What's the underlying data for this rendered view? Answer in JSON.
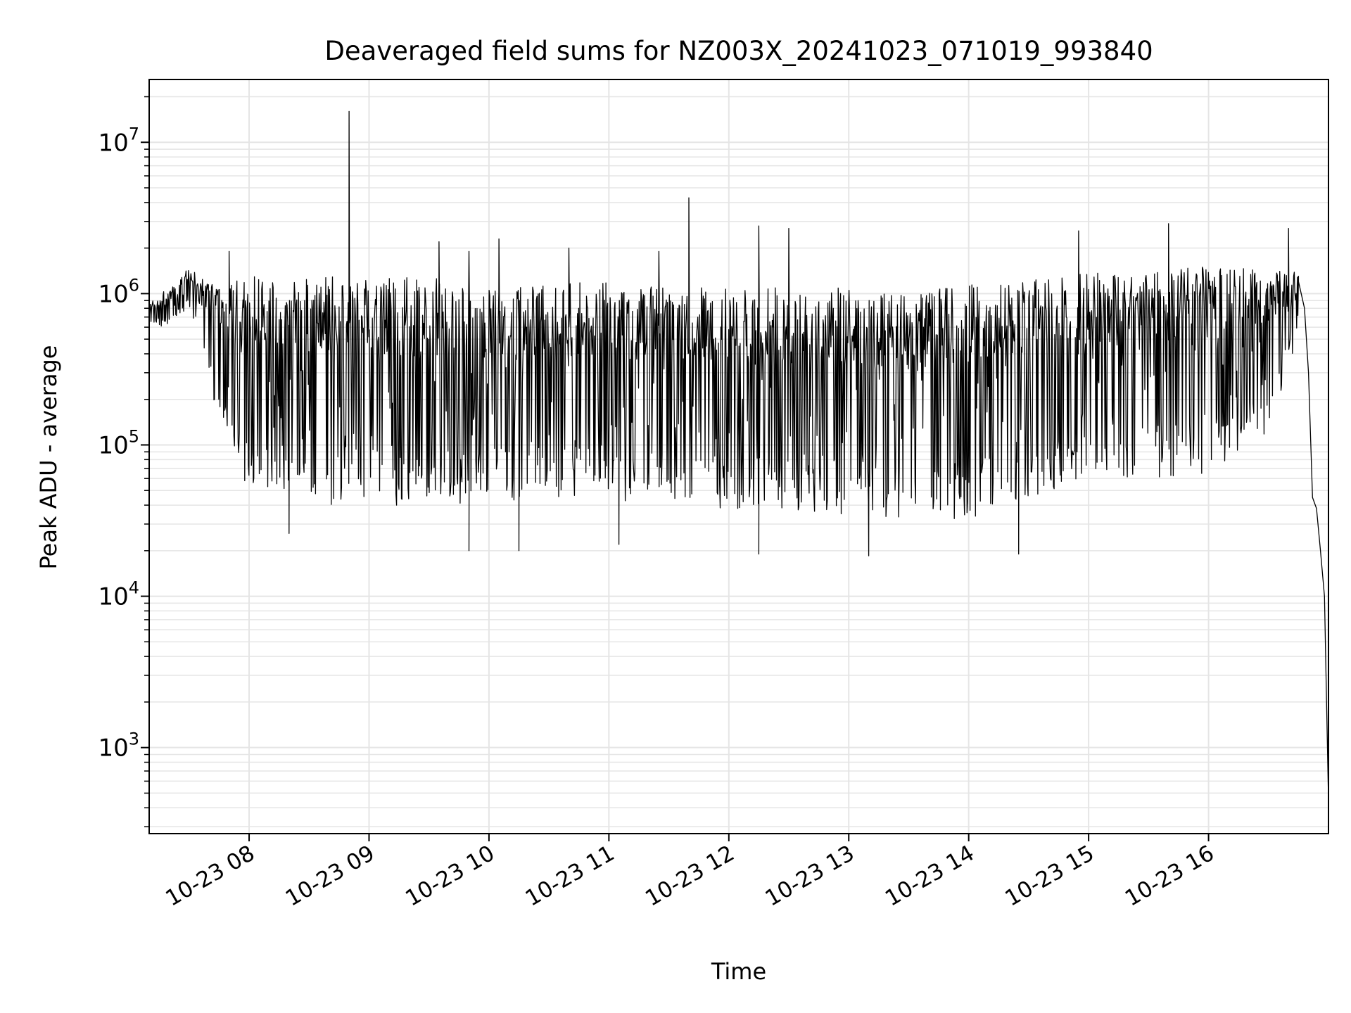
{
  "chart_data": {
    "type": "line",
    "title": "Deaveraged field sums for NZ003X_20241023_071019_993840",
    "xlabel": "Time",
    "ylabel": "Peak ADU - average",
    "yscale": "log",
    "ylim": [
      270,
      26000000
    ],
    "xlim": [
      "2024-10-23 07:10",
      "2024-10-23 17:00"
    ],
    "grid": true,
    "line_color": "#000000",
    "grid_color": "#e5e5e5",
    "x_tick_values": [
      "2024-10-23 08:00",
      "2024-10-23 09:00",
      "2024-10-23 10:00",
      "2024-10-23 11:00",
      "2024-10-23 12:00",
      "2024-10-23 13:00",
      "2024-10-23 14:00",
      "2024-10-23 15:00",
      "2024-10-23 16:00"
    ],
    "x_tick_labels": [
      "10-23 08",
      "10-23 09",
      "10-23 10",
      "10-23 11",
      "10-23 12",
      "10-23 13",
      "10-23 14",
      "10-23 15",
      "10-23 16"
    ],
    "y_ticks": [
      {
        "base": "10",
        "exp": "3",
        "value": 1000
      },
      {
        "base": "10",
        "exp": "4",
        "value": 10000
      },
      {
        "base": "10",
        "exp": "5",
        "value": 100000
      },
      {
        "base": "10",
        "exp": "6",
        "value": 1000000
      },
      {
        "base": "10",
        "exp": "7",
        "value": 10000000
      }
    ],
    "envelope": {
      "x": [
        "2024-10-23 07:10",
        "2024-10-23 07:20",
        "2024-10-23 07:30",
        "2024-10-23 07:35",
        "2024-10-23 07:40",
        "2024-10-23 07:45",
        "2024-10-23 07:50",
        "2024-10-23 08:00",
        "2024-10-23 08:30",
        "2024-10-23 09:00",
        "2024-10-23 09:30",
        "2024-10-23 10:00",
        "2024-10-23 10:30",
        "2024-10-23 11:00",
        "2024-10-23 11:30",
        "2024-10-23 12:00",
        "2024-10-23 12:30",
        "2024-10-23 13:00",
        "2024-10-23 13:30",
        "2024-10-23 14:00",
        "2024-10-23 14:30",
        "2024-10-23 15:00",
        "2024-10-23 15:30",
        "2024-10-23 16:00",
        "2024-10-23 16:30",
        "2024-10-23 16:40",
        "2024-10-23 16:45"
      ],
      "upper": [
        900000,
        1100000,
        1500000,
        1300000,
        1200000,
        1300000,
        1300000,
        1300000,
        1300000,
        1300000,
        1300000,
        1100000,
        1200000,
        1200000,
        1100000,
        1100000,
        1100000,
        1100000,
        1000000,
        1200000,
        1300000,
        1400000,
        1450000,
        1500000,
        1500000,
        1450000,
        1350000
      ],
      "lower": [
        600000,
        600000,
        800000,
        400000,
        250000,
        150000,
        100000,
        45000,
        40000,
        40000,
        38000,
        42000,
        45000,
        42000,
        40000,
        38000,
        35000,
        35000,
        32000,
        32000,
        45000,
        60000,
        60000,
        65000,
        120000,
        300000,
        600000
      ]
    },
    "spikes": [
      {
        "x": "2024-10-23 08:50",
        "y": 16000000
      },
      {
        "x": "2024-10-23 11:40",
        "y": 4300000
      },
      {
        "x": "2024-10-23 11:40",
        "y": 3500000
      },
      {
        "x": "2024-10-23 12:15",
        "y": 2800000
      },
      {
        "x": "2024-10-23 12:30",
        "y": 2700000
      },
      {
        "x": "2024-10-23 14:55",
        "y": 2600000
      },
      {
        "x": "2024-10-23 15:40",
        "y": 2900000
      },
      {
        "x": "2024-10-23 16:40",
        "y": 2700000
      },
      {
        "x": "2024-10-23 10:05",
        "y": 2300000
      },
      {
        "x": "2024-10-23 09:35",
        "y": 2200000
      },
      {
        "x": "2024-10-23 09:50",
        "y": 1900000
      },
      {
        "x": "2024-10-23 11:25",
        "y": 1900000
      },
      {
        "x": "2024-10-23 10:40",
        "y": 2000000
      },
      {
        "x": "2024-10-23 07:50",
        "y": 1900000
      },
      {
        "x": "2024-10-23 09:25",
        "y": 1100000
      },
      {
        "x": "2024-10-23 09:50",
        "y": 20000
      },
      {
        "x": "2024-10-23 10:15",
        "y": 20000
      },
      {
        "x": "2024-10-23 12:15",
        "y": 19000
      },
      {
        "x": "2024-10-23 13:10",
        "y": 18500
      },
      {
        "x": "2024-10-23 14:25",
        "y": 19000
      },
      {
        "x": "2024-10-23 08:20",
        "y": 26000
      },
      {
        "x": "2024-10-23 11:05",
        "y": 22000
      }
    ],
    "tail": {
      "x": [
        "2024-10-23 16:45",
        "2024-10-23 16:48",
        "2024-10-23 16:50",
        "2024-10-23 16:52",
        "2024-10-23 16:54",
        "2024-10-23 16:56",
        "2024-10-23 16:58",
        "2024-10-23 17:00"
      ],
      "values": [
        1200000,
        800000,
        300000,
        45000,
        38000,
        20000,
        10000,
        450
      ]
    }
  }
}
